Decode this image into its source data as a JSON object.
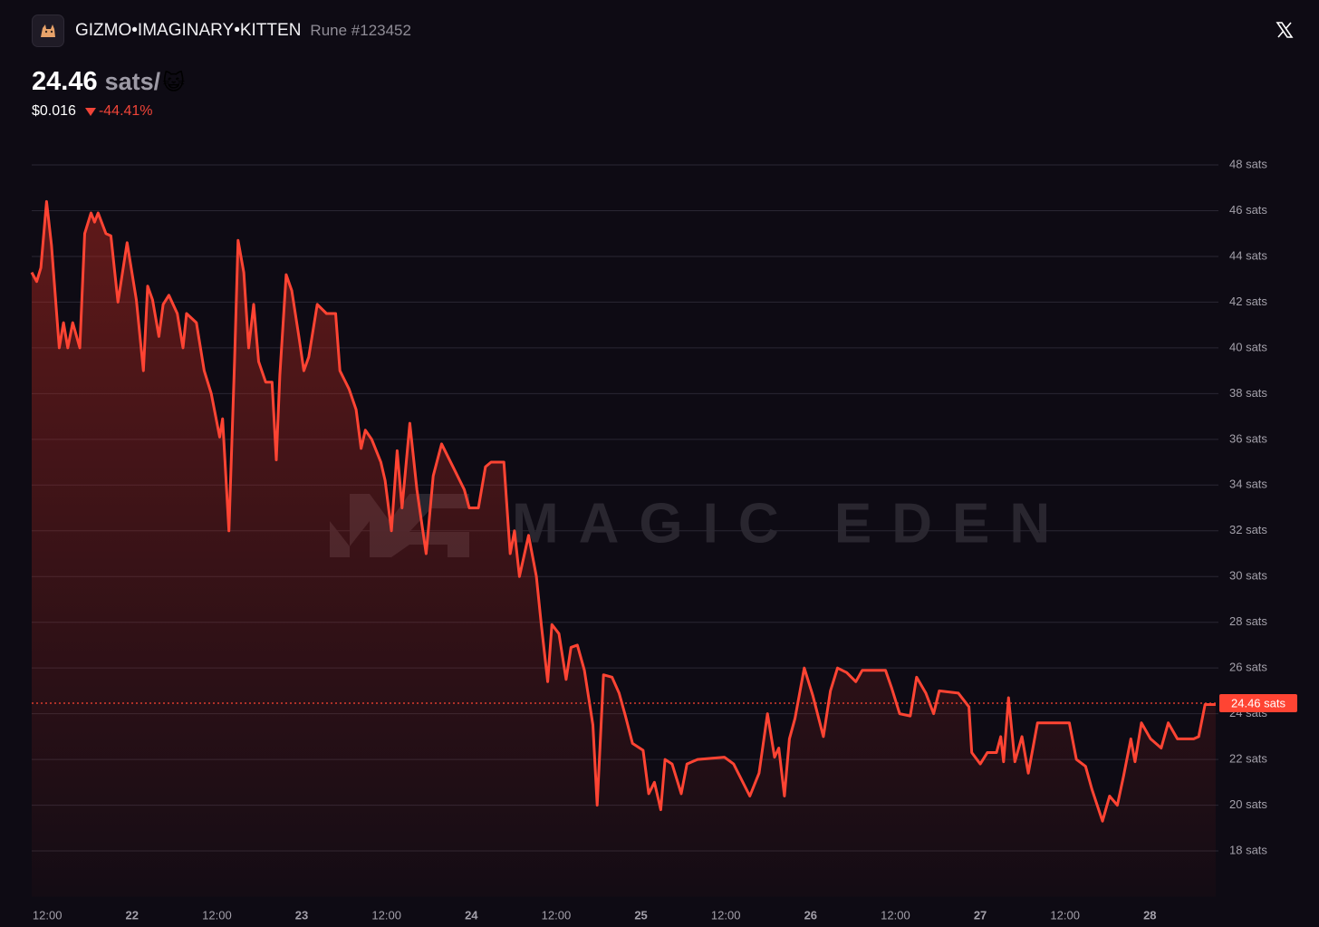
{
  "header": {
    "name": "GIZMO•IMAGINARY•KITTEN",
    "rune": "Rune #123452",
    "price": "24.46",
    "unit": "sats/",
    "emoji": "😺",
    "usd": "$0.016",
    "change": "-44.41%"
  },
  "chart_data": {
    "type": "line",
    "watermark": "MAGIC EDEN",
    "color": "#ff4433",
    "x": [
      9.8,
      10.5,
      11.1,
      11.9,
      12.6,
      13.7,
      14.3,
      14.9,
      15.6,
      16.6,
      17.3,
      18.2,
      18.7,
      19.2,
      20.3,
      21.0,
      22.0,
      23.3,
      24.6,
      25.6,
      26.2,
      26.9,
      27.8,
      28.4,
      29.2,
      30.4,
      31.2,
      31.7,
      33.1,
      34.2,
      35.2,
      36.4,
      36.8,
      37.7,
      38.5,
      39.0,
      39.8,
      40.5,
      41.2,
      41.9,
      42.9,
      43.8,
      44.4,
      44.9,
      45.8,
      46.6,
      47.6,
      48.3,
      49.0,
      50.2,
      51.5,
      52.8,
      53.4,
      54.7,
      55.7,
      56.4,
      57.0,
      57.9,
      59.2,
      59.8,
      60.7,
      61.5,
      62.2,
      63.3,
      64.3,
      65.6,
      66.6,
      67.8,
      69.4,
      71.0,
      71.7,
      73.0,
      74.0,
      74.8,
      76.6,
      77.5,
      78.1,
      78.8,
      80.1,
      81.2,
      81.9,
      82.8,
      83.4,
      84.4,
      85.4,
      86.1,
      87.0,
      88.0,
      89.2,
      89.8,
      90.7,
      91.9,
      92.9,
      93.8,
      94.8,
      96.3,
      97.1,
      97.9,
      98.8,
      99.4,
      100.4,
      101.7,
      102.5,
      104.0,
      107.8,
      109.1,
      111.4,
      112.7,
      113.9,
      114.9,
      115.5,
      116.3,
      117.0,
      117.8,
      119.1,
      120.3,
      121.8,
      122.8,
      123.8,
      125.1,
      126.4,
      127.3,
      130.6,
      131.5,
      132.6,
      134.1,
      135.0,
      136.3,
      137.4,
      138.2,
      140.9,
      142.4,
      142.8,
      144.0,
      145.0,
      146.3,
      146.9,
      147.3,
      148.0,
      148.9,
      149.9,
      150.8,
      152.1,
      156.6,
      157.6,
      158.9,
      159.8,
      161.3,
      162.3,
      163.4,
      164.3,
      165.3,
      165.9,
      166.8,
      168.1,
      169.6,
      170.6,
      171.9,
      174.2,
      174.9,
      175.8,
      177.3
    ],
    "values": [
      43.3,
      42.9,
      43.5,
      46.4,
      44.5,
      40.0,
      41.1,
      40.0,
      41.1,
      40.0,
      45.0,
      45.9,
      45.5,
      45.9,
      45.0,
      44.9,
      42.0,
      44.6,
      42.1,
      39.0,
      42.7,
      42.1,
      40.5,
      41.9,
      42.3,
      41.5,
      40.0,
      41.5,
      41.1,
      39.0,
      38.0,
      36.1,
      36.9,
      32.0,
      39.4,
      44.7,
      43.3,
      40.0,
      41.9,
      39.4,
      38.5,
      38.5,
      35.1,
      38.8,
      43.2,
      42.5,
      40.5,
      39.0,
      39.6,
      41.9,
      41.5,
      41.5,
      39.0,
      38.2,
      37.3,
      35.6,
      36.4,
      36.0,
      35.0,
      34.2,
      32.0,
      35.5,
      33.0,
      36.7,
      33.8,
      31.0,
      34.4,
      35.8,
      34.8,
      33.8,
      33.0,
      33.0,
      34.8,
      35.0,
      35.0,
      31.0,
      32.0,
      30.0,
      31.8,
      30.0,
      27.9,
      25.4,
      27.9,
      27.5,
      25.5,
      26.9,
      27.0,
      25.9,
      23.5,
      20.0,
      25.7,
      25.6,
      24.9,
      23.9,
      22.7,
      22.4,
      20.5,
      21.0,
      19.8,
      22.0,
      21.8,
      20.5,
      21.8,
      22.0,
      22.1,
      21.8,
      20.4,
      21.4,
      24.0,
      22.1,
      22.5,
      20.4,
      22.9,
      23.8,
      26.0,
      24.8,
      23.0,
      25.0,
      26.0,
      25.8,
      25.4,
      25.9,
      25.9,
      25.1,
      24.0,
      23.9,
      25.6,
      24.9,
      24.0,
      25.0,
      24.9,
      24.3,
      22.3,
      21.8,
      22.3,
      22.3,
      23.0,
      21.9,
      24.7,
      21.9,
      23.0,
      21.4,
      23.6,
      23.6,
      22.0,
      21.7,
      20.7,
      19.3,
      20.4,
      20.0,
      21.3,
      22.9,
      21.9,
      23.6,
      22.9,
      22.5,
      23.6,
      22.9,
      22.9,
      23.0,
      24.4,
      24.4
    ],
    "current": {
      "value": 24.46,
      "label": "24.46 sats"
    },
    "xlim": [
      9.8,
      177.7
    ],
    "ylim": [
      16,
      48
    ],
    "xticks": [
      {
        "value": 12,
        "label": "12:00"
      },
      {
        "value": 24,
        "label": "22"
      },
      {
        "value": 36,
        "label": "12:00"
      },
      {
        "value": 48,
        "label": "23"
      },
      {
        "value": 60,
        "label": "12:00"
      },
      {
        "value": 72,
        "label": "24"
      },
      {
        "value": 84,
        "label": "12:00"
      },
      {
        "value": 96,
        "label": "25"
      },
      {
        "value": 108,
        "label": "12:00"
      },
      {
        "value": 120,
        "label": "26"
      },
      {
        "value": 132,
        "label": "12:00"
      },
      {
        "value": 144,
        "label": "27"
      },
      {
        "value": 156,
        "label": "12:00"
      },
      {
        "value": 168,
        "label": "28"
      }
    ],
    "yticks": [
      {
        "value": 18,
        "label": "18 sats"
      },
      {
        "value": 20,
        "label": "20 sats"
      },
      {
        "value": 22,
        "label": "22 sats"
      },
      {
        "value": 24,
        "label": "24 sats"
      },
      {
        "value": 26,
        "label": "26 sats"
      },
      {
        "value": 28,
        "label": "28 sats"
      },
      {
        "value": 30,
        "label": "30 sats"
      },
      {
        "value": 32,
        "label": "32 sats"
      },
      {
        "value": 34,
        "label": "34 sats"
      },
      {
        "value": 36,
        "label": "36 sats"
      },
      {
        "value": 38,
        "label": "38 sats"
      },
      {
        "value": 40,
        "label": "40 sats"
      },
      {
        "value": 42,
        "label": "42 sats"
      },
      {
        "value": 44,
        "label": "44 sats"
      },
      {
        "value": 46,
        "label": "46 sats"
      },
      {
        "value": 48,
        "label": "48 sats"
      }
    ],
    "grid": true
  }
}
